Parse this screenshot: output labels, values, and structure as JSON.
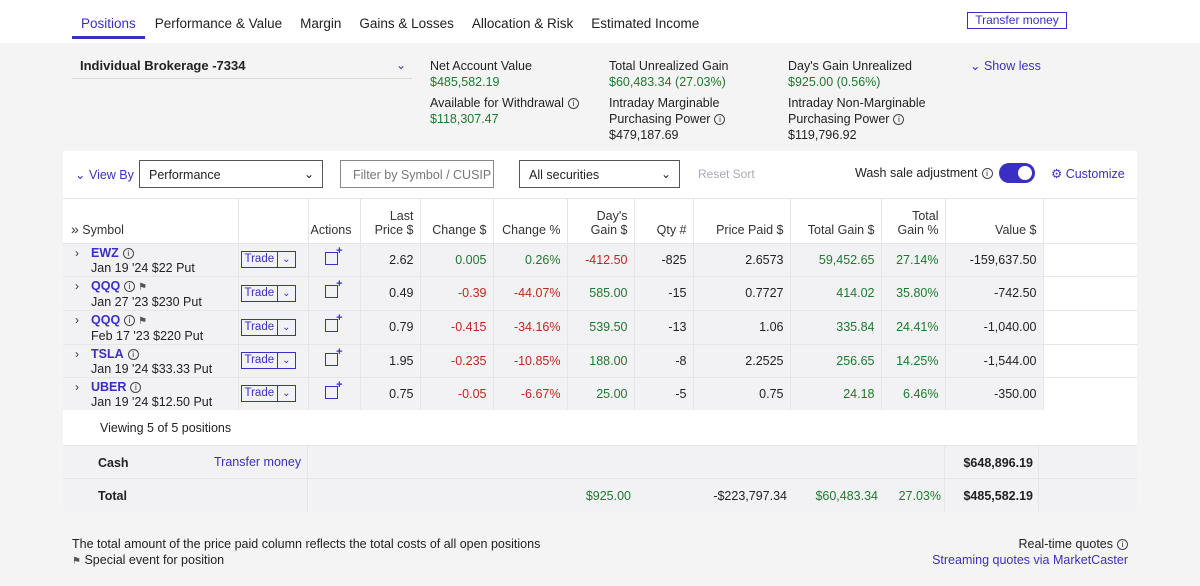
{
  "tabs": [
    "Positions",
    "Performance & Value",
    "Margin",
    "Gains & Losses",
    "Allocation & Risk",
    "Estimated Income"
  ],
  "transfer_btn": "Transfer money",
  "account": "Individual Brokerage -7334",
  "summary": {
    "nav_label": "Net Account Value",
    "nav": "$485,582.19",
    "avail_label": "Available for Withdrawal",
    "avail": "$118,307.47",
    "tug_label": "Total Unrealized Gain",
    "tug": "$60,483.34 (27.03%)",
    "imp_label1": "Intraday Marginable",
    "imp_label2": "Purchasing Power",
    "imp": "$479,187.69",
    "dgu_label": "Day's Gain Unrealized",
    "dgu": "$925.00 (0.56%)",
    "inmp_label1": "Intraday Non-Marginable",
    "inmp_label2": "Purchasing Power",
    "inmp": "$119,796.92"
  },
  "show_less": "Show less",
  "toolbar": {
    "view_by": "View By",
    "view_value": "Performance",
    "filter_placeholder": "Filter by Symbol / CUSIP",
    "securities": "All securities",
    "reset": "Reset Sort",
    "wash": "Wash sale adjustment",
    "customize": "Customize"
  },
  "headers": {
    "symbol": "Symbol",
    "actions": "Actions",
    "last1": "Last",
    "last2": "Price $",
    "change": "Change $",
    "changepct": "Change %",
    "dg1": "Day's",
    "dg2": "Gain $",
    "qty": "Qty #",
    "paid": "Price Paid $",
    "tg": "Total Gain $",
    "tgp1": "Total",
    "tgp2": "Gain %",
    "value": "Value $"
  },
  "trade_label": "Trade",
  "positions": [
    {
      "sym": "EWZ",
      "desc": "Jan 19 '24 $22 Put",
      "flag": false,
      "last": "2.62",
      "chg": "0.005",
      "chgp": "0.26%",
      "dg": "-412.50",
      "qty": "-825",
      "paid": "2.6573",
      "tg": "59,452.65",
      "tgp": "27.14%",
      "val": "-159,637.50",
      "up": true,
      "dgup": false
    },
    {
      "sym": "QQQ",
      "desc": "Jan 27 '23 $230 Put",
      "flag": true,
      "last": "0.49",
      "chg": "-0.39",
      "chgp": "-44.07%",
      "dg": "585.00",
      "qty": "-15",
      "paid": "0.7727",
      "tg": "414.02",
      "tgp": "35.80%",
      "val": "-742.50",
      "up": false,
      "dgup": true
    },
    {
      "sym": "QQQ",
      "desc": "Feb 17 '23 $220 Put",
      "flag": true,
      "last": "0.79",
      "chg": "-0.415",
      "chgp": "-34.16%",
      "dg": "539.50",
      "qty": "-13",
      "paid": "1.06",
      "tg": "335.84",
      "tgp": "24.41%",
      "val": "-1,040.00",
      "up": false,
      "dgup": true
    },
    {
      "sym": "TSLA",
      "desc": "Jan 19 '24 $33.33 Put",
      "flag": false,
      "last": "1.95",
      "chg": "-0.235",
      "chgp": "-10.85%",
      "dg": "188.00",
      "qty": "-8",
      "paid": "2.2525",
      "tg": "256.65",
      "tgp": "14.25%",
      "val": "-1,544.00",
      "up": false,
      "dgup": true
    },
    {
      "sym": "UBER",
      "desc": "Jan 19 '24 $12.50 Put",
      "flag": false,
      "last": "0.75",
      "chg": "-0.05",
      "chgp": "-6.67%",
      "dg": "25.00",
      "qty": "-5",
      "paid": "0.75",
      "tg": "24.18",
      "tgp": "6.46%",
      "val": "-350.00",
      "up": false,
      "dgup": true
    }
  ],
  "viewing": "Viewing 5 of 5 positions",
  "cash": {
    "label": "Cash",
    "link": "Transfer money",
    "value": "$648,896.19"
  },
  "total": {
    "label": "Total",
    "dg": "$925.00",
    "paid": "-$223,797.34",
    "tg": "$60,483.34",
    "tgp": "27.03%",
    "value": "$485,582.19"
  },
  "notes": {
    "line1": "The total amount of the price paid column reflects the total costs of all open positions",
    "line2": "Special event for position"
  },
  "rtq": {
    "label": "Real-time quotes",
    "link": "Streaming quotes via MarketCaster"
  },
  "colors": {
    "accent": "#3a2fc4",
    "gain": "#1c7a2c",
    "loss": "#c0261f"
  }
}
